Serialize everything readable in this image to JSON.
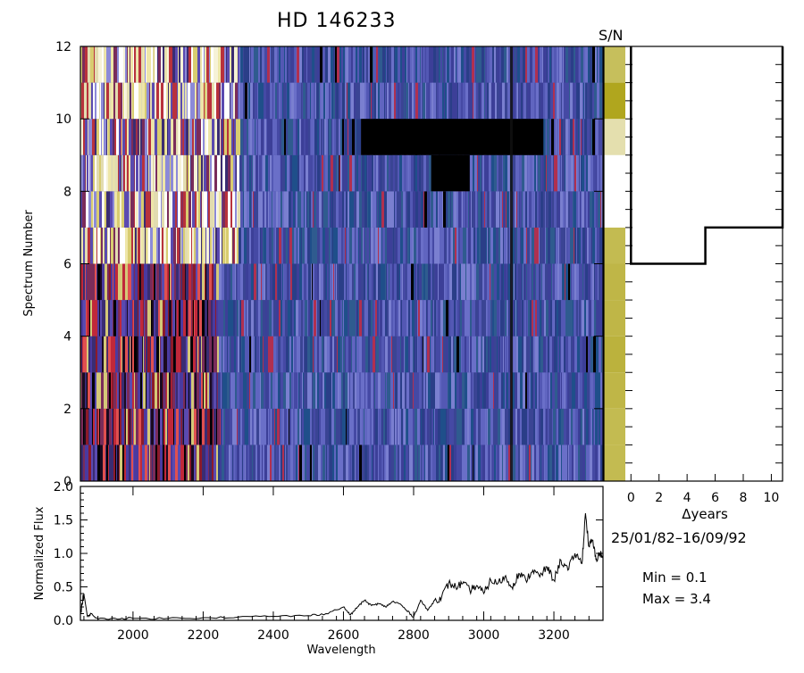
{
  "title": "HD  146233",
  "sn_label": "S/N",
  "date_range": "25/01/82–16/09/92",
  "min_text": "Min =  0.1",
  "max_text": "Max =  3.4",
  "chart_data": [
    {
      "type": "heatmap",
      "name": "dynamic-spectrum",
      "ylabel": "Spectrum Number",
      "xlim": [
        1850,
        3340
      ],
      "ylim": [
        0,
        12
      ],
      "yticks": [
        0,
        2,
        4,
        6,
        8,
        10,
        12
      ],
      "rows": [
        {
          "y": 0,
          "blue_start": 2240
        },
        {
          "y": 1,
          "blue_start": 2240
        },
        {
          "y": 2,
          "blue_start": 2240
        },
        {
          "y": 3,
          "blue_start": 2240
        },
        {
          "y": 4,
          "blue_start": 2240
        },
        {
          "y": 5,
          "blue_start": 2240
        },
        {
          "y": 6,
          "blue_start": 2300
        },
        {
          "y": 7,
          "blue_start": 2300
        },
        {
          "y": 8,
          "blue_start": 2300
        },
        {
          "y": 9,
          "blue_start": 2300
        },
        {
          "y": 10,
          "blue_start": 2300
        },
        {
          "y": 11,
          "blue_start": 2300
        }
      ],
      "black_regions": [
        {
          "y0": 9,
          "y1": 10,
          "x0": 2650,
          "x1": 3170
        },
        {
          "y0": 8,
          "y1": 9,
          "x0": 2850,
          "x1": 2960
        }
      ]
    },
    {
      "type": "heatmap",
      "name": "signal-to-noise-strip",
      "title": "S/N",
      "ylim": [
        0,
        12
      ],
      "levels": [
        0.75,
        0.75,
        0.8,
        0.85,
        0.8,
        0.8,
        0.75,
        0.0,
        0.0,
        0.3,
        1.0,
        0.7
      ]
    },
    {
      "type": "line",
      "name": "time-span",
      "xlabel": "Δyears",
      "xlim": [
        -0.4,
        10.8
      ],
      "xticks": [
        0,
        2,
        4,
        6,
        8,
        10
      ],
      "ylim": [
        0,
        12
      ],
      "steps": [
        {
          "x0": 0,
          "x1": 5.3,
          "y": 6
        },
        {
          "x0": 5.3,
          "x1": 10.8,
          "y": 7
        }
      ],
      "start_y": 12
    },
    {
      "type": "line",
      "name": "mean-spectrum",
      "xlabel": "Wavelength",
      "ylabel": "Normalized Flux",
      "xlim": [
        1850,
        3340
      ],
      "ylim": [
        0,
        2.0
      ],
      "xticks": [
        2000,
        2200,
        2400,
        2600,
        2800,
        3000,
        3200
      ],
      "yticks": [
        0.0,
        0.5,
        1.0,
        1.5,
        2.0
      ],
      "x": [
        1850,
        1860,
        1870,
        1880,
        1900,
        1950,
        2000,
        2100,
        2200,
        2300,
        2400,
        2500,
        2550,
        2600,
        2620,
        2640,
        2660,
        2680,
        2700,
        2720,
        2740,
        2760,
        2780,
        2800,
        2820,
        2840,
        2860,
        2880,
        2900,
        2920,
        2940,
        2960,
        2980,
        3000,
        3020,
        3040,
        3060,
        3080,
        3100,
        3120,
        3140,
        3160,
        3180,
        3200,
        3220,
        3240,
        3260,
        3280,
        3290,
        3300,
        3310,
        3320,
        3330,
        3340
      ],
      "y": [
        0.1,
        0.4,
        0.05,
        0.1,
        0.02,
        0.03,
        0.03,
        0.03,
        0.04,
        0.05,
        0.06,
        0.07,
        0.1,
        0.2,
        0.08,
        0.2,
        0.3,
        0.22,
        0.25,
        0.2,
        0.28,
        0.25,
        0.15,
        0.05,
        0.3,
        0.15,
        0.3,
        0.35,
        0.55,
        0.5,
        0.55,
        0.45,
        0.52,
        0.4,
        0.6,
        0.55,
        0.65,
        0.5,
        0.7,
        0.6,
        0.75,
        0.65,
        0.8,
        0.6,
        0.9,
        0.75,
        1.0,
        0.85,
        1.6,
        1.1,
        1.2,
        0.9,
        1.0,
        0.95
      ]
    }
  ]
}
